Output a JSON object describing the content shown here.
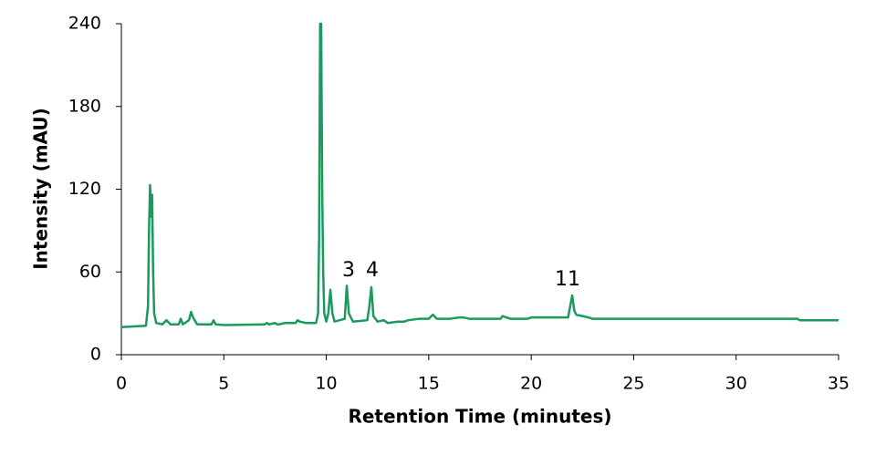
{
  "chart_data": {
    "type": "line",
    "xlabel": "Retention Time (minutes)",
    "ylabel": "Intensity (mAU)",
    "x": [
      0,
      1.2,
      1.3,
      1.35,
      1.4,
      1.45,
      1.5,
      1.55,
      1.6,
      1.7,
      2.0,
      2.2,
      2.4,
      2.8,
      2.9,
      3.0,
      3.3,
      3.4,
      3.5,
      3.7,
      4.4,
      4.5,
      4.6,
      5,
      7.0,
      7.1,
      7.2,
      7.5,
      7.6,
      7.7,
      8.0,
      8.5,
      8.6,
      8.7,
      9.0,
      9.5,
      9.6,
      9.65,
      9.7,
      9.75,
      9.8,
      9.85,
      9.9,
      10.0,
      10.1,
      10.2,
      10.3,
      10.4,
      10.9,
      11.0,
      11.1,
      11.3,
      12.0,
      12.1,
      12.2,
      12.3,
      12.5,
      12.8,
      13.0,
      13.5,
      13.8,
      14.0,
      14.5,
      15.0,
      15.2,
      15.4,
      16.0,
      16.5,
      16.7,
      17.0,
      17.5,
      18.5,
      18.6,
      19.0,
      19.8,
      20,
      21.8,
      21.9,
      22.0,
      22.1,
      22.2,
      22.5,
      22.8,
      23,
      33.0,
      33.1,
      35
    ],
    "values": [
      20,
      21,
      35,
      90,
      123,
      100,
      116,
      60,
      30,
      23,
      22,
      25,
      22,
      22,
      26,
      22,
      25,
      31,
      27,
      22,
      22,
      25,
      22,
      21.5,
      22,
      23,
      22,
      23,
      22,
      22,
      23,
      23,
      25,
      24,
      23,
      23,
      30,
      85,
      240,
      240,
      120,
      60,
      30,
      24,
      30,
      47,
      30,
      24,
      26,
      50,
      30,
      24,
      25,
      35,
      49,
      28,
      24,
      25,
      23,
      24,
      24,
      25,
      26,
      26,
      29,
      26,
      26,
      27,
      27,
      26,
      26,
      26,
      28,
      26,
      26,
      27,
      27,
      35,
      43,
      32,
      29,
      28,
      27,
      26,
      26,
      25,
      25
    ],
    "color": "#1a9a5c",
    "annotations": [
      "3",
      "4",
      "11"
    ],
    "xlim": [
      0,
      35
    ],
    "xticks": [
      0,
      5,
      10,
      15,
      20,
      25,
      30,
      35
    ],
    "ylim": [
      0,
      240
    ],
    "yticks": [
      0,
      60,
      120,
      180,
      240
    ],
    "grid": false
  }
}
